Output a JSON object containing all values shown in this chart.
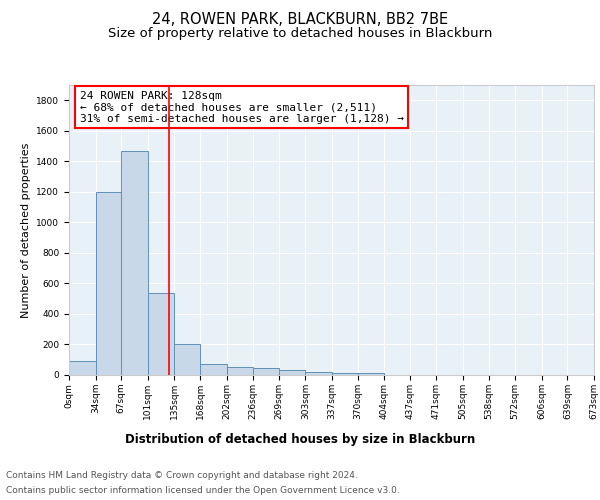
{
  "title": "24, ROWEN PARK, BLACKBURN, BB2 7BE",
  "subtitle": "Size of property relative to detached houses in Blackburn",
  "xlabel": "Distribution of detached houses by size in Blackburn",
  "ylabel": "Number of detached properties",
  "bar_edges": [
    0,
    34,
    67,
    101,
    135,
    168,
    202,
    236,
    269,
    303,
    337,
    370,
    404,
    437,
    471,
    505,
    538,
    572,
    606,
    639,
    673
  ],
  "bar_heights": [
    95,
    1200,
    1470,
    535,
    205,
    70,
    50,
    45,
    32,
    22,
    15,
    13,
    0,
    0,
    0,
    0,
    0,
    0,
    0,
    0
  ],
  "bar_color": "#c8d8e8",
  "bar_edge_color": "#6090b8",
  "vline_x": 128,
  "vline_color": "red",
  "annotation_line1": "24 ROWEN PARK: 128sqm",
  "annotation_line2": "← 68% of detached houses are smaller (2,511)",
  "annotation_line3": "31% of semi-detached houses are larger (1,128) →",
  "box_color": "white",
  "box_edge_color": "red",
  "ylim": [
    0,
    1900
  ],
  "yticks": [
    0,
    200,
    400,
    600,
    800,
    1000,
    1200,
    1400,
    1600,
    1800
  ],
  "tick_labels": [
    "0sqm",
    "34sqm",
    "67sqm",
    "101sqm",
    "135sqm",
    "168sqm",
    "202sqm",
    "236sqm",
    "269sqm",
    "303sqm",
    "337sqm",
    "370sqm",
    "404sqm",
    "437sqm",
    "471sqm",
    "505sqm",
    "538sqm",
    "572sqm",
    "606sqm",
    "639sqm",
    "673sqm"
  ],
  "background_color": "#e8f0f8",
  "footer_line1": "Contains HM Land Registry data © Crown copyright and database right 2024.",
  "footer_line2": "Contains public sector information licensed under the Open Government Licence v3.0.",
  "title_fontsize": 10.5,
  "subtitle_fontsize": 9.5,
  "xlabel_fontsize": 8.5,
  "ylabel_fontsize": 8,
  "annotation_fontsize": 8,
  "footer_fontsize": 6.5,
  "tick_fontsize": 6.5
}
